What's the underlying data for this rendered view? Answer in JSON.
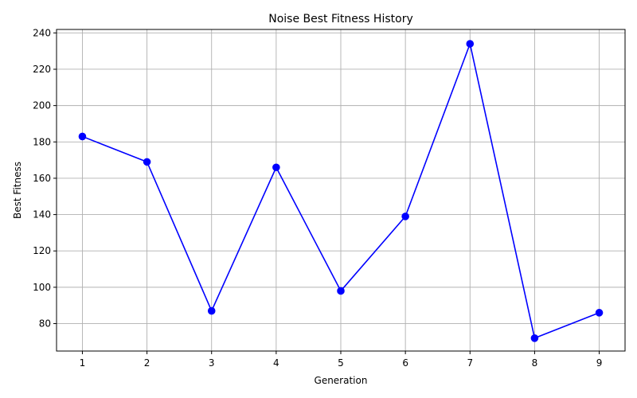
{
  "chart_data": {
    "type": "line",
    "title": "Noise Best Fitness History",
    "xlabel": "Generation",
    "ylabel": "Best Fitness",
    "x": [
      1,
      2,
      3,
      4,
      5,
      6,
      7,
      8,
      9
    ],
    "series": [
      {
        "values": [
          183,
          169,
          87,
          166,
          98,
          139,
          234,
          72,
          86
        ],
        "color": "#0000ff",
        "marker": "circle"
      }
    ],
    "xticks": [
      "1",
      "2",
      "3",
      "4",
      "5",
      "6",
      "7",
      "8",
      "9"
    ],
    "yticks": [
      "80",
      "100",
      "120",
      "140",
      "160",
      "180",
      "200",
      "220",
      "240"
    ],
    "xlim": [
      0.6,
      9.4
    ],
    "ylim": [
      64.9,
      241.9
    ],
    "grid": true,
    "grid_color": "#b0b0b0"
  }
}
